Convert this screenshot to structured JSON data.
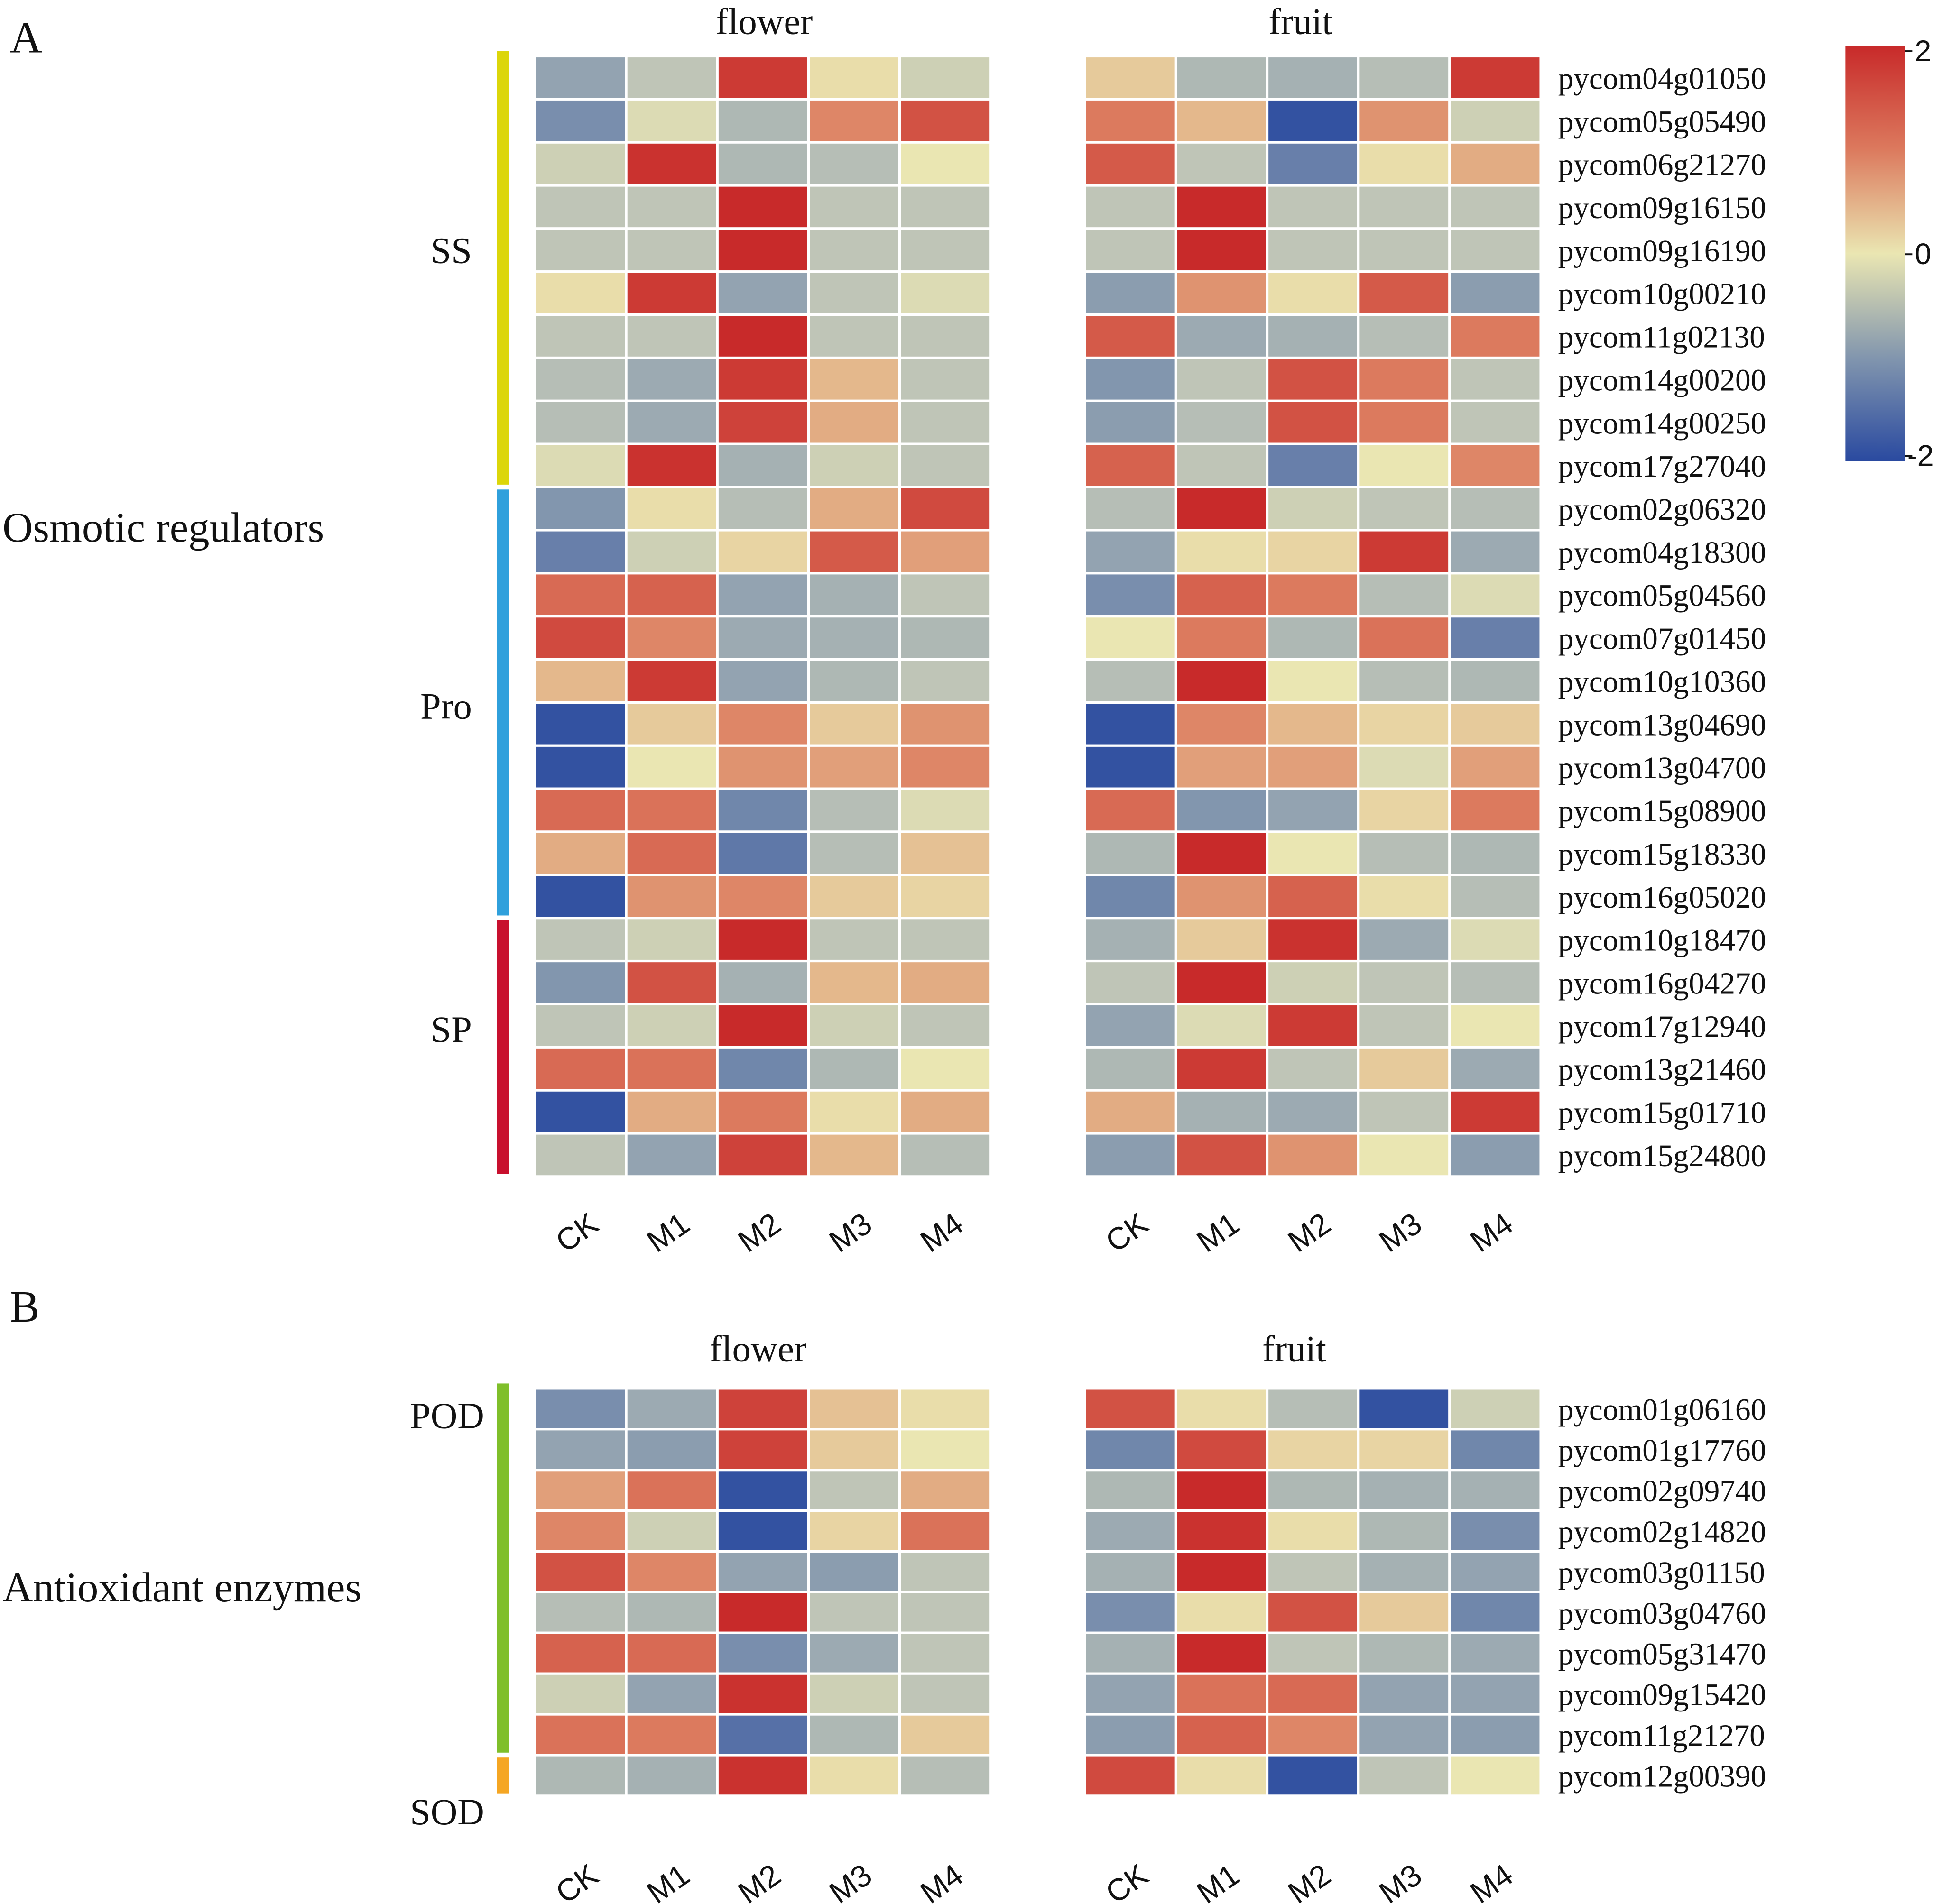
{
  "panel_labels": [
    "A",
    "B"
  ],
  "colors": {
    "low": "#3050a0",
    "mid": "#eae6b2",
    "high": "#c82a2a",
    "cell_border": "#ffffff"
  },
  "colorbar": {
    "ticks": [
      "2",
      "0",
      "-2"
    ]
  },
  "chart_data": [
    {
      "type": "heatmap",
      "panel": "A",
      "category": "Osmotic regulators",
      "tissues": [
        "flower",
        "fruit"
      ],
      "columns": [
        "CK",
        "M1",
        "M2",
        "M3",
        "M4"
      ],
      "value_range": [
        -2,
        2
      ],
      "groups": [
        {
          "name": "SS",
          "color": "#dcd60a",
          "rows": 10
        },
        {
          "name": "Pro",
          "color": "#2fa0dc",
          "rows": 10
        },
        {
          "name": "SP",
          "color": "#c8102e",
          "rows": 6
        }
      ],
      "genes": [
        "pycom04g01050",
        "pycom05g05490",
        "pycom06g21270",
        "pycom09g16150",
        "pycom09g16190",
        "pycom10g00210",
        "pycom11g02130",
        "pycom14g00200",
        "pycom14g00250",
        "pycom17g27040",
        "pycom02g06320",
        "pycom04g18300",
        "pycom05g04560",
        "pycom07g01450",
        "pycom10g10360",
        "pycom13g04690",
        "pycom13g04700",
        "pycom15g08900",
        "pycom15g18330",
        "pycom16g05020",
        "pycom10g18470",
        "pycom16g04270",
        "pycom17g12940",
        "pycom13g21460",
        "pycom15g01710",
        "pycom15g24800"
      ],
      "values": {
        "flower": [
          [
            -0.8,
            -0.3,
            1.8,
            0.1,
            -0.2
          ],
          [
            -1.1,
            -0.1,
            -0.5,
            0.9,
            1.5
          ],
          [
            -0.2,
            1.9,
            -0.5,
            -0.4,
            0.0
          ],
          [
            -0.3,
            -0.3,
            2.0,
            -0.3,
            -0.3
          ],
          [
            -0.3,
            -0.3,
            2.0,
            -0.3,
            -0.3
          ],
          [
            0.1,
            1.8,
            -0.8,
            -0.3,
            -0.1
          ],
          [
            -0.3,
            -0.3,
            2.0,
            -0.3,
            -0.3
          ],
          [
            -0.4,
            -0.7,
            1.8,
            0.5,
            -0.3
          ],
          [
            -0.4,
            -0.7,
            1.7,
            0.6,
            -0.3
          ],
          [
            -0.1,
            1.9,
            -0.6,
            -0.2,
            -0.3
          ],
          [
            -1.0,
            0.1,
            -0.4,
            0.6,
            1.6
          ],
          [
            -1.3,
            -0.2,
            0.2,
            1.4,
            0.7
          ],
          [
            1.2,
            1.3,
            -0.8,
            -0.6,
            -0.3
          ],
          [
            1.6,
            0.9,
            -0.7,
            -0.6,
            -0.5
          ],
          [
            0.5,
            1.8,
            -0.8,
            -0.5,
            -0.3
          ],
          [
            -1.9,
            0.3,
            0.9,
            0.3,
            0.8
          ],
          [
            -1.9,
            0.0,
            0.8,
            0.7,
            0.9
          ],
          [
            1.2,
            1.1,
            -1.2,
            -0.4,
            -0.1
          ],
          [
            0.6,
            1.2,
            -1.4,
            -0.4,
            0.4
          ],
          [
            -1.9,
            0.8,
            0.9,
            0.3,
            0.2
          ],
          [
            -0.3,
            -0.2,
            2.0,
            -0.3,
            -0.3
          ],
          [
            -1.0,
            1.5,
            -0.6,
            0.5,
            0.6
          ],
          [
            -0.3,
            -0.2,
            2.0,
            -0.2,
            -0.3
          ],
          [
            1.2,
            1.1,
            -1.2,
            -0.5,
            0.0
          ],
          [
            -1.9,
            0.6,
            1.0,
            0.1,
            0.6
          ],
          [
            -0.3,
            -0.8,
            1.7,
            0.5,
            -0.4
          ]
        ],
        "fruit": [
          [
            0.3,
            -0.5,
            -0.6,
            -0.4,
            1.8
          ],
          [
            1.0,
            0.5,
            -1.9,
            0.8,
            -0.2
          ],
          [
            1.4,
            -0.3,
            -1.3,
            0.1,
            0.6
          ],
          [
            -0.3,
            2.0,
            -0.3,
            -0.3,
            -0.3
          ],
          [
            -0.3,
            2.0,
            -0.3,
            -0.3,
            -0.3
          ],
          [
            -0.9,
            0.8,
            0.1,
            1.4,
            -0.9
          ],
          [
            1.4,
            -0.7,
            -0.6,
            -0.4,
            1.0
          ],
          [
            -1.0,
            -0.3,
            1.5,
            1.0,
            -0.3
          ],
          [
            -0.9,
            -0.4,
            1.5,
            1.0,
            -0.3
          ],
          [
            1.3,
            -0.3,
            -1.3,
            0.0,
            0.9
          ],
          [
            -0.4,
            2.0,
            -0.2,
            -0.3,
            -0.4
          ],
          [
            -0.8,
            0.1,
            0.2,
            1.8,
            -0.7
          ],
          [
            -1.1,
            1.3,
            1.0,
            -0.4,
            -0.1
          ],
          [
            0.0,
            1.0,
            -0.5,
            1.1,
            -1.3
          ],
          [
            -0.4,
            2.0,
            0.0,
            -0.4,
            -0.5
          ],
          [
            -1.9,
            0.9,
            0.5,
            0.2,
            0.3
          ],
          [
            -1.9,
            0.7,
            0.7,
            -0.1,
            0.7
          ],
          [
            1.2,
            -1.0,
            -0.8,
            0.2,
            1.0
          ],
          [
            -0.5,
            2.0,
            0.0,
            -0.4,
            -0.5
          ],
          [
            -1.2,
            0.8,
            1.3,
            0.1,
            -0.4
          ],
          [
            -0.6,
            0.3,
            1.9,
            -0.7,
            -0.1
          ],
          [
            -0.3,
            2.0,
            -0.2,
            -0.3,
            -0.4
          ],
          [
            -0.8,
            -0.1,
            1.8,
            -0.3,
            0.0
          ],
          [
            -0.5,
            1.8,
            -0.3,
            0.3,
            -0.7
          ],
          [
            0.6,
            -0.6,
            -0.7,
            -0.3,
            1.8
          ],
          [
            -0.9,
            1.5,
            0.8,
            0.0,
            -0.9
          ]
        ]
      }
    },
    {
      "type": "heatmap",
      "panel": "B",
      "category": "Antioxidant enzymes",
      "tissues": [
        "flower",
        "fruit"
      ],
      "columns": [
        "CK",
        "M1",
        "M2",
        "M3",
        "M4"
      ],
      "value_range": [
        -2,
        2
      ],
      "groups": [
        {
          "name": "POD",
          "color": "#7fbf2a",
          "rows": 9
        },
        {
          "name": "SOD",
          "color": "#f5a623",
          "rows": 1
        }
      ],
      "genes": [
        "pycom01g06160",
        "pycom01g17760",
        "pycom02g09740",
        "pycom02g14820",
        "pycom03g01150",
        "pycom03g04760",
        "pycom05g31470",
        "pycom09g15420",
        "pycom11g21270",
        "pycom12g00390"
      ],
      "values": {
        "flower": [
          [
            -1.1,
            -0.7,
            1.7,
            0.4,
            0.1
          ],
          [
            -0.8,
            -0.9,
            1.7,
            0.3,
            0.0
          ],
          [
            0.7,
            1.1,
            -1.9,
            -0.3,
            0.6
          ],
          [
            0.9,
            -0.2,
            -1.9,
            0.2,
            1.1
          ],
          [
            1.5,
            0.9,
            -0.8,
            -0.9,
            -0.3
          ],
          [
            -0.4,
            -0.5,
            2.0,
            -0.3,
            -0.3
          ],
          [
            1.3,
            1.2,
            -1.1,
            -0.7,
            -0.3
          ],
          [
            -0.2,
            -0.8,
            1.9,
            -0.2,
            -0.3
          ],
          [
            1.1,
            1.0,
            -1.5,
            -0.5,
            0.3
          ],
          [
            -0.5,
            -0.6,
            1.9,
            0.1,
            -0.4
          ]
        ],
        "fruit": [
          [
            1.5,
            0.1,
            -0.4,
            -1.9,
            -0.2
          ],
          [
            -1.2,
            1.6,
            0.2,
            0.2,
            -1.2
          ],
          [
            -0.5,
            2.0,
            -0.5,
            -0.6,
            -0.6
          ],
          [
            -0.7,
            1.9,
            0.1,
            -0.5,
            -1.1
          ],
          [
            -0.6,
            2.0,
            -0.3,
            -0.6,
            -0.8
          ],
          [
            -1.1,
            0.1,
            1.5,
            0.3,
            -1.2
          ],
          [
            -0.6,
            2.0,
            -0.3,
            -0.5,
            -0.7
          ],
          [
            -0.8,
            1.1,
            1.2,
            -0.8,
            -0.8
          ],
          [
            -0.9,
            1.3,
            0.9,
            -0.8,
            -0.9
          ],
          [
            1.6,
            0.1,
            -1.9,
            -0.3,
            0.0
          ]
        ]
      }
    }
  ]
}
